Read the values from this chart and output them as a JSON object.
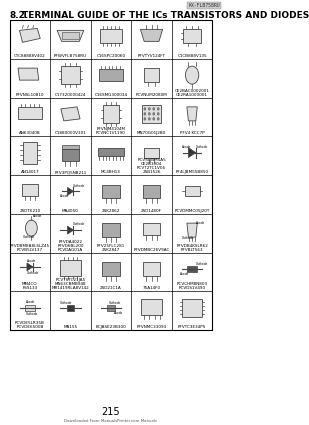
{
  "title_prefix": "8.2.",
  "title_text": "TERMINAL GUIDE OF THE ICs TRANSISTORS AND DIODES",
  "page_number": "215",
  "watermark": "KX-FLB758RU",
  "footer": "Downloaded From ManualsPrinter.com Manuals",
  "bg_color": "#ffffff",
  "grid_rows": 8,
  "grid_cols": 5,
  "cells": [
    {
      "row": 0,
      "col": 0,
      "label": "CTC88888V402"
    },
    {
      "row": 0,
      "col": 1,
      "label": "PFWVFLB758RU"
    },
    {
      "row": 0,
      "col": 2,
      "label": "C16SPC20060"
    },
    {
      "row": 0,
      "col": 3,
      "label": "PFVTYV124FT"
    },
    {
      "row": 0,
      "col": 4,
      "label": "C1CB888V135"
    },
    {
      "row": 1,
      "col": 0,
      "label": "PFVNSL10810"
    },
    {
      "row": 1,
      "col": 1,
      "label": "C17320000424"
    },
    {
      "row": 1,
      "col": 2,
      "label": "C16SMG300034"
    },
    {
      "row": 1,
      "col": 3,
      "label": "PCVNUM2080M"
    },
    {
      "row": 1,
      "col": 4,
      "label": "CE2RA1000001\nCE2BAC0002001"
    },
    {
      "row": 2,
      "col": 0,
      "label": "AN63040B"
    },
    {
      "row": 2,
      "col": 1,
      "label": "C1880000V301"
    },
    {
      "row": 2,
      "col": 2,
      "label": "PCVNC1V1190\nPFVNJM4104M"
    },
    {
      "row": 2,
      "col": 3,
      "label": "MN70G01J2B0"
    },
    {
      "row": 2,
      "col": 4,
      "label": "PFV4 KCC7P"
    },
    {
      "row": 3,
      "col": 0,
      "label": "AN14017"
    },
    {
      "row": 3,
      "col": 1,
      "label": "PFV3PQ5NB211"
    },
    {
      "row": 3,
      "col": 2,
      "label": "MC4BH13"
    },
    {
      "row": 3,
      "col": 3,
      "label": "2SB1526\nPCVT2TC1V06\nCE2B1004\nPCVSLJBM5A5"
    },
    {
      "row": 3,
      "col": 4,
      "label": "PF4LJBM55B850"
    },
    {
      "row": 4,
      "col": 0,
      "label": "2SDT6210"
    },
    {
      "row": 4,
      "col": 1,
      "label": "MA4050"
    },
    {
      "row": 4,
      "col": 2,
      "label": "2SK2862"
    },
    {
      "row": 4,
      "col": 3,
      "label": "2SD1480F"
    },
    {
      "row": 4,
      "col": 4,
      "label": "PCVDMMC05J20T"
    },
    {
      "row": 5,
      "col": 0,
      "label": "PCVB5LV137\nPFVD8M8A8LSLZ45"
    },
    {
      "row": 5,
      "col": 1,
      "label": "PCVDAG01A\nPFVD6BL200\nPFVDA4022"
    },
    {
      "row": 5,
      "col": 2,
      "label": "2SK2847\nPFV25FLC281"
    },
    {
      "row": 5,
      "col": 3,
      "label": "PFVDMBC26V9AC"
    },
    {
      "row": 5,
      "col": 4,
      "label": "PFVBLT563\nPFVDB4KSLR62"
    },
    {
      "row": 6,
      "col": 0,
      "label": "FSS133\nMM4CO"
    },
    {
      "row": 6,
      "col": 1,
      "label": "MR1419RLA8V142\nMN63CBMB948\nPCVTSTC21JA5"
    },
    {
      "row": 6,
      "col": 2,
      "label": "2SD21C1A"
    },
    {
      "row": 6,
      "col": 3,
      "label": "75A14F0"
    },
    {
      "row": 6,
      "col": 4,
      "label": "PCVDS1V490\nPCVCHM8N803"
    },
    {
      "row": 7,
      "col": 0,
      "label": "PCVDE6500B\nPCVDE5LR35B"
    },
    {
      "row": 7,
      "col": 1,
      "label": "MA155"
    },
    {
      "row": 7,
      "col": 2,
      "label": "BCJASE23B300"
    },
    {
      "row": 7,
      "col": 3,
      "label": "PFVNMC33093"
    },
    {
      "row": 7,
      "col": 4,
      "label": "PFVTC3E34P5"
    }
  ]
}
